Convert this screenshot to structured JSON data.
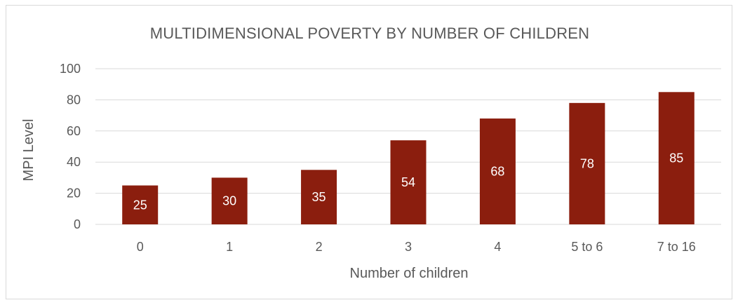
{
  "chart_data": {
    "type": "bar",
    "title": "MULTIDIMENSIONAL POVERTY BY NUMBER OF CHILDREN",
    "xlabel": "Number of children",
    "ylabel": "MPI Level",
    "categories": [
      "0",
      "1",
      "2",
      "3",
      "4",
      "5 to 6",
      "7 to 16"
    ],
    "values": [
      25,
      30,
      35,
      54,
      68,
      78,
      85
    ],
    "data_labels": [
      "25",
      "30",
      "35",
      "54",
      "68",
      "78",
      "85"
    ],
    "ylim": [
      0,
      100
    ],
    "yticks": [
      "0",
      "20",
      "40",
      "60",
      "80",
      "100"
    ],
    "grid": true,
    "legend": "none",
    "bar_color": "#8B1E0E"
  }
}
